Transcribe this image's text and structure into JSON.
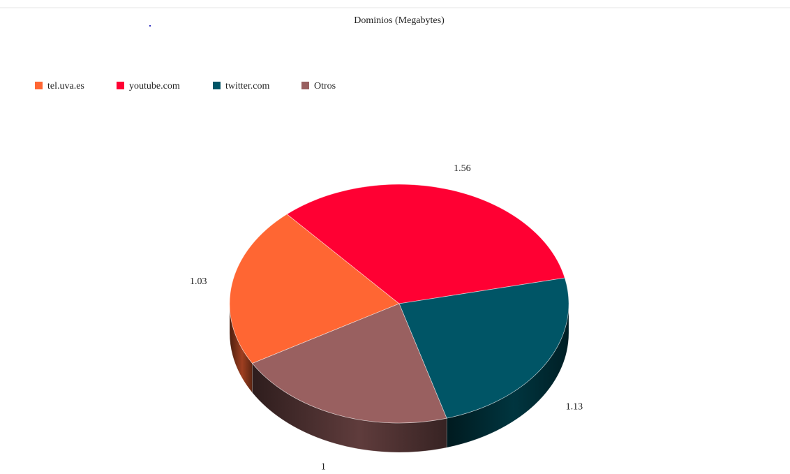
{
  "chart_data": {
    "type": "pie",
    "title": "Dominios (Megabytes)",
    "legend_position": "top-left",
    "style": "3d",
    "slices": [
      {
        "label": "tel.uva.es",
        "value": 1.03,
        "value_label": "1.03",
        "color": "#FF6633"
      },
      {
        "label": "youtube.com",
        "value": 1.56,
        "value_label": "1.56",
        "color": "#FF0033"
      },
      {
        "label": "twitter.com",
        "value": 1.13,
        "value_label": "1.13",
        "color": "#005566"
      },
      {
        "label": "Otros",
        "value": 1.0,
        "value_label": "1",
        "color": "#996060"
      }
    ]
  }
}
